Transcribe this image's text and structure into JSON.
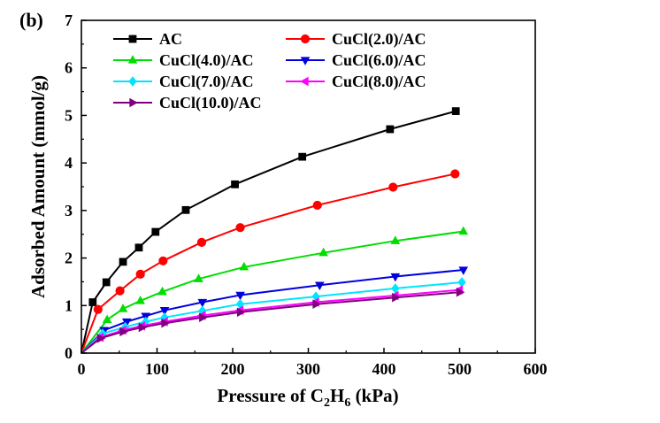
{
  "panel_label": "(b)",
  "chart_data": {
    "type": "line",
    "xlabel_parts": [
      "Pressure of C",
      "2",
      "H",
      "6",
      " (kPa)"
    ],
    "ylabel": "Adsorbed Amount (mmol/g)",
    "xlim": [
      0,
      600
    ],
    "ylim": [
      0,
      7
    ],
    "xticks": [
      0,
      100,
      200,
      300,
      400,
      500,
      600
    ],
    "yticks": [
      0,
      1,
      2,
      3,
      4,
      5,
      6,
      7
    ],
    "grid": false,
    "legend_position": "top-left",
    "series": [
      {
        "name": "AC",
        "color": "#000000",
        "marker": "square",
        "x": [
          0,
          15,
          33,
          55,
          76,
          98,
          138,
          203,
          292,
          408,
          495
        ],
        "y": [
          0,
          1.07,
          1.49,
          1.92,
          2.22,
          2.55,
          3.01,
          3.55,
          4.13,
          4.71,
          5.09
        ]
      },
      {
        "name": "CuCl(2.0)/AC",
        "color": "#ff0000",
        "marker": "circle",
        "x": [
          0,
          22,
          51,
          78,
          108,
          159,
          210,
          312,
          412,
          494
        ],
        "y": [
          0,
          0.92,
          1.31,
          1.66,
          1.94,
          2.33,
          2.64,
          3.11,
          3.49,
          3.77
        ]
      },
      {
        "name": "CuCl(4.0)/AC",
        "color": "#00dd00",
        "marker": "triangle-up",
        "x": [
          0,
          34,
          55,
          78,
          107,
          155,
          215,
          320,
          415,
          505
        ],
        "y": [
          0,
          0.7,
          0.93,
          1.1,
          1.29,
          1.56,
          1.81,
          2.11,
          2.36,
          2.56
        ]
      },
      {
        "name": "CuCl(6.0)/AC",
        "color": "#0000dd",
        "marker": "triangle-down",
        "x": [
          0,
          30,
          60,
          85,
          110,
          160,
          210,
          315,
          415,
          505
        ],
        "y": [
          0,
          0.48,
          0.66,
          0.78,
          0.9,
          1.07,
          1.22,
          1.43,
          1.61,
          1.75
        ]
      },
      {
        "name": "CuCl(7.0)/AC",
        "color": "#00e5ff",
        "marker": "diamond",
        "x": [
          0,
          28,
          58,
          85,
          110,
          160,
          210,
          310,
          415,
          503
        ],
        "y": [
          0,
          0.41,
          0.55,
          0.66,
          0.75,
          0.89,
          1.03,
          1.19,
          1.36,
          1.49
        ]
      },
      {
        "name": "CuCl(8.0)/AC",
        "color": "#ff00ff",
        "marker": "triangle-left",
        "x": [
          0,
          25,
          55,
          80,
          110,
          160,
          210,
          310,
          415,
          500
        ],
        "y": [
          0,
          0.33,
          0.48,
          0.57,
          0.66,
          0.79,
          0.9,
          1.07,
          1.21,
          1.33
        ]
      },
      {
        "name": "CuCl(10.0)/AC",
        "color": "#7f007f",
        "marker": "triangle-right",
        "x": [
          0,
          25,
          55,
          80,
          110,
          160,
          210,
          310,
          415,
          500
        ],
        "y": [
          0,
          0.31,
          0.45,
          0.54,
          0.63,
          0.75,
          0.86,
          1.03,
          1.17,
          1.28
        ]
      }
    ]
  }
}
